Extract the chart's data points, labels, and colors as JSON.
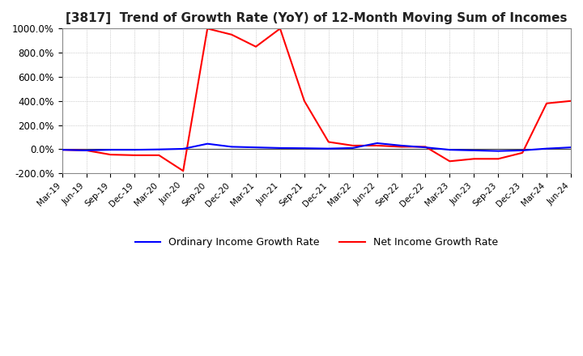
{
  "title": "[3817]  Trend of Growth Rate (YoY) of 12-Month Moving Sum of Incomes",
  "title_fontsize": 11,
  "ylim": [
    -200,
    1000
  ],
  "yticks": [
    -200,
    0,
    200,
    400,
    600,
    800,
    1000
  ],
  "ytick_labels": [
    "-200.0%",
    "0.0%",
    "200.0%",
    "400.0%",
    "600.0%",
    "800.0%",
    "1000.0%"
  ],
  "background_color": "#ffffff",
  "plot_bg_color": "#ffffff",
  "grid_color": "#aaaaaa",
  "legend_labels": [
    "Ordinary Income Growth Rate",
    "Net Income Growth Rate"
  ],
  "legend_colors": [
    "#0000ff",
    "#ff0000"
  ],
  "x_labels": [
    "Mar-19",
    "Jun-19",
    "Sep-19",
    "Dec-19",
    "Mar-20",
    "Jun-20",
    "Sep-20",
    "Dec-20",
    "Mar-21",
    "Jun-21",
    "Sep-21",
    "Dec-21",
    "Mar-22",
    "Jun-22",
    "Sep-22",
    "Dec-22",
    "Mar-23",
    "Jun-23",
    "Sep-23",
    "Dec-23",
    "Mar-24",
    "Jun-24"
  ],
  "ordinary_income": [
    -5,
    -10,
    -5,
    -5,
    -2,
    3,
    45,
    20,
    15,
    10,
    8,
    5,
    10,
    50,
    30,
    15,
    -5,
    -10,
    -15,
    -10,
    5,
    15
  ],
  "net_income": [
    -5,
    -10,
    -45,
    -50,
    -50,
    -180,
    1000,
    950,
    850,
    1000,
    400,
    60,
    30,
    30,
    20,
    20,
    -100,
    -80,
    -80,
    -30,
    380,
    400
  ]
}
